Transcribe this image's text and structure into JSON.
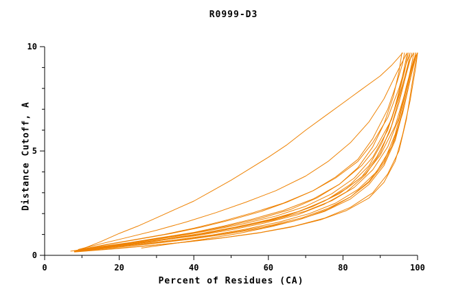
{
  "chart_data": {
    "type": "line",
    "title": "R0999-D3",
    "xlabel": "Percent of Residues (CA)",
    "ylabel": "Distance Cutoff, A",
    "xlim": [
      0,
      100
    ],
    "ylim": [
      0,
      10
    ],
    "x_major_ticks": [
      0,
      20,
      40,
      60,
      80,
      100
    ],
    "x_minor_step": 10,
    "y_major_ticks": [
      0,
      5,
      10
    ],
    "y_minor_step": 1,
    "grid": false,
    "legend_position": "none",
    "line_color": "#ee8100",
    "axis_color": "#000000",
    "curves": [
      [
        [
          10,
          0.3
        ],
        [
          15,
          0.65
        ],
        [
          20,
          1.05
        ],
        [
          25,
          1.4
        ],
        [
          30,
          1.8
        ],
        [
          35,
          2.2
        ],
        [
          40,
          2.6
        ],
        [
          45,
          3.1
        ],
        [
          50,
          3.6
        ],
        [
          55,
          4.15
        ],
        [
          60,
          4.7
        ],
        [
          65,
          5.3
        ],
        [
          70,
          6.0
        ],
        [
          75,
          6.65
        ],
        [
          80,
          7.3
        ],
        [
          85,
          7.95
        ],
        [
          90,
          8.6
        ],
        [
          93,
          9.1
        ],
        [
          95,
          9.5
        ],
        [
          96,
          9.7
        ]
      ],
      [
        [
          9,
          0.28
        ],
        [
          15,
          0.55
        ],
        [
          22,
          0.85
        ],
        [
          30,
          1.2
        ],
        [
          38,
          1.6
        ],
        [
          46,
          2.05
        ],
        [
          54,
          2.55
        ],
        [
          62,
          3.1
        ],
        [
          70,
          3.8
        ],
        [
          76,
          4.5
        ],
        [
          82,
          5.4
        ],
        [
          87,
          6.4
        ],
        [
          91,
          7.5
        ],
        [
          94,
          8.6
        ],
        [
          96,
          9.3
        ],
        [
          97,
          9.65
        ]
      ],
      [
        [
          9,
          0.25
        ],
        [
          16,
          0.5
        ],
        [
          24,
          0.75
        ],
        [
          32,
          1.0
        ],
        [
          40,
          1.3
        ],
        [
          48,
          1.65
        ],
        [
          56,
          2.05
        ],
        [
          64,
          2.5
        ],
        [
          72,
          3.1
        ],
        [
          78,
          3.7
        ],
        [
          84,
          4.5
        ],
        [
          88,
          5.4
        ],
        [
          92,
          6.6
        ],
        [
          95,
          8.0
        ],
        [
          97,
          9.2
        ],
        [
          98,
          9.7
        ]
      ],
      [
        [
          8,
          0.22
        ],
        [
          15,
          0.42
        ],
        [
          23,
          0.62
        ],
        [
          31,
          0.85
        ],
        [
          40,
          1.1
        ],
        [
          48,
          1.4
        ],
        [
          56,
          1.75
        ],
        [
          64,
          2.15
        ],
        [
          72,
          2.7
        ],
        [
          79,
          3.4
        ],
        [
          85,
          4.3
        ],
        [
          89,
          5.2
        ],
        [
          93,
          6.5
        ],
        [
          96,
          8.2
        ],
        [
          98,
          9.4
        ],
        [
          99,
          9.7
        ]
      ],
      [
        [
          8,
          0.2
        ],
        [
          15,
          0.38
        ],
        [
          24,
          0.58
        ],
        [
          33,
          0.8
        ],
        [
          42,
          1.05
        ],
        [
          51,
          1.35
        ],
        [
          60,
          1.7
        ],
        [
          68,
          2.1
        ],
        [
          75,
          2.6
        ],
        [
          81,
          3.2
        ],
        [
          86,
          3.9
        ],
        [
          90,
          4.8
        ],
        [
          94,
          6.2
        ],
        [
          97,
          8.0
        ],
        [
          99,
          9.3
        ],
        [
          100,
          9.7
        ]
      ],
      [
        [
          9,
          0.22
        ],
        [
          17,
          0.4
        ],
        [
          26,
          0.6
        ],
        [
          35,
          0.82
        ],
        [
          44,
          1.08
        ],
        [
          53,
          1.38
        ],
        [
          62,
          1.72
        ],
        [
          70,
          2.12
        ],
        [
          77,
          2.62
        ],
        [
          83,
          3.25
        ],
        [
          88,
          4.1
        ],
        [
          92,
          5.2
        ],
        [
          95,
          6.6
        ],
        [
          97,
          8.1
        ],
        [
          99,
          9.4
        ],
        [
          100,
          9.7
        ]
      ],
      [
        [
          8,
          0.18
        ],
        [
          16,
          0.33
        ],
        [
          25,
          0.5
        ],
        [
          34,
          0.68
        ],
        [
          43,
          0.9
        ],
        [
          52,
          1.15
        ],
        [
          61,
          1.45
        ],
        [
          69,
          1.8
        ],
        [
          76,
          2.25
        ],
        [
          82,
          2.8
        ],
        [
          87,
          3.5
        ],
        [
          91,
          4.4
        ],
        [
          94,
          5.6
        ],
        [
          96,
          7.0
        ],
        [
          98,
          8.6
        ],
        [
          99.5,
          9.7
        ]
      ],
      [
        [
          8,
          0.2
        ],
        [
          16,
          0.36
        ],
        [
          25,
          0.54
        ],
        [
          35,
          0.74
        ],
        [
          45,
          0.98
        ],
        [
          54,
          1.26
        ],
        [
          63,
          1.6
        ],
        [
          71,
          2.0
        ],
        [
          78,
          2.5
        ],
        [
          84,
          3.15
        ],
        [
          89,
          4.0
        ],
        [
          93,
          5.2
        ],
        [
          96,
          6.8
        ],
        [
          98,
          8.4
        ],
        [
          99.5,
          9.5
        ],
        [
          100,
          9.7
        ]
      ],
      [
        [
          8,
          0.17
        ],
        [
          17,
          0.3
        ],
        [
          27,
          0.45
        ],
        [
          37,
          0.62
        ],
        [
          47,
          0.82
        ],
        [
          57,
          1.06
        ],
        [
          66,
          1.35
        ],
        [
          74,
          1.7
        ],
        [
          81,
          2.15
        ],
        [
          87,
          2.75
        ],
        [
          91,
          3.5
        ],
        [
          94,
          4.5
        ],
        [
          96,
          5.8
        ],
        [
          98,
          7.4
        ],
        [
          99.5,
          9.0
        ],
        [
          100,
          9.7
        ]
      ],
      [
        [
          9,
          0.2
        ],
        [
          18,
          0.36
        ],
        [
          28,
          0.54
        ],
        [
          38,
          0.75
        ],
        [
          48,
          1.0
        ],
        [
          58,
          1.3
        ],
        [
          67,
          1.65
        ],
        [
          75,
          2.1
        ],
        [
          82,
          2.7
        ],
        [
          87,
          3.4
        ],
        [
          91,
          4.3
        ],
        [
          94,
          5.5
        ],
        [
          96.5,
          7.2
        ],
        [
          98.5,
          8.8
        ],
        [
          99.5,
          9.7
        ]
      ],
      [
        [
          8,
          0.22
        ],
        [
          15,
          0.4
        ],
        [
          23,
          0.6
        ],
        [
          31,
          0.82
        ],
        [
          40,
          1.08
        ],
        [
          49,
          1.4
        ],
        [
          58,
          1.78
        ],
        [
          66,
          2.2
        ],
        [
          73,
          2.75
        ],
        [
          79,
          3.4
        ],
        [
          84,
          4.2
        ],
        [
          88,
          5.2
        ],
        [
          91,
          6.3
        ],
        [
          93.5,
          7.6
        ],
        [
          95,
          8.8
        ],
        [
          95.8,
          9.7
        ]
      ],
      [
        [
          8,
          0.2
        ],
        [
          16,
          0.38
        ],
        [
          25,
          0.58
        ],
        [
          34,
          0.8
        ],
        [
          43,
          1.05
        ],
        [
          52,
          1.35
        ],
        [
          61,
          1.7
        ],
        [
          69,
          2.15
        ],
        [
          76,
          2.7
        ],
        [
          82,
          3.4
        ],
        [
          87,
          4.3
        ],
        [
          90.5,
          5.4
        ],
        [
          93.5,
          6.8
        ],
        [
          95.5,
          8.2
        ],
        [
          96.8,
          9.3
        ],
        [
          97.2,
          9.7
        ]
      ],
      [
        [
          12,
          0.25
        ],
        [
          20,
          0.45
        ],
        [
          29,
          0.66
        ],
        [
          38,
          0.9
        ],
        [
          47,
          1.18
        ],
        [
          56,
          1.5
        ],
        [
          65,
          1.9
        ],
        [
          72,
          2.35
        ],
        [
          79,
          2.95
        ],
        [
          85,
          3.75
        ],
        [
          89,
          4.7
        ],
        [
          92.5,
          5.9
        ],
        [
          95,
          7.3
        ],
        [
          97,
          8.7
        ],
        [
          98.5,
          9.7
        ]
      ],
      [
        [
          8,
          0.16
        ],
        [
          18,
          0.3
        ],
        [
          28,
          0.46
        ],
        [
          38,
          0.64
        ],
        [
          48,
          0.85
        ],
        [
          58,
          1.1
        ],
        [
          67,
          1.4
        ],
        [
          75,
          1.78
        ],
        [
          82,
          2.3
        ],
        [
          88,
          3.0
        ],
        [
          92,
          3.9
        ],
        [
          95,
          5.0
        ],
        [
          97,
          6.5
        ],
        [
          98.5,
          8.2
        ],
        [
          99.5,
          9.3
        ],
        [
          100,
          9.7
        ]
      ],
      [
        [
          9,
          0.24
        ],
        [
          17,
          0.44
        ],
        [
          26,
          0.66
        ],
        [
          35,
          0.9
        ],
        [
          44,
          1.18
        ],
        [
          53,
          1.5
        ],
        [
          62,
          1.88
        ],
        [
          70,
          2.35
        ],
        [
          77,
          2.95
        ],
        [
          83,
          3.7
        ],
        [
          88,
          4.7
        ],
        [
          92,
          6.0
        ],
        [
          94.5,
          7.4
        ],
        [
          96.5,
          8.8
        ],
        [
          97.5,
          9.7
        ]
      ],
      [
        [
          10,
          0.3
        ],
        [
          18,
          0.55
        ],
        [
          26,
          0.8
        ],
        [
          34,
          1.05
        ],
        [
          42,
          1.35
        ],
        [
          50,
          1.7
        ],
        [
          58,
          2.1
        ],
        [
          65,
          2.55
        ],
        [
          72,
          3.1
        ],
        [
          78,
          3.75
        ],
        [
          84,
          4.6
        ],
        [
          88,
          5.6
        ],
        [
          92,
          7.0
        ],
        [
          94.5,
          8.3
        ],
        [
          96,
          9.2
        ],
        [
          96.5,
          9.7
        ]
      ],
      [
        [
          7,
          0.2
        ],
        [
          14,
          0.35
        ],
        [
          22,
          0.52
        ],
        [
          31,
          0.72
        ],
        [
          41,
          0.95
        ],
        [
          50,
          1.22
        ],
        [
          59,
          1.55
        ],
        [
          68,
          1.95
        ],
        [
          75,
          2.45
        ],
        [
          81,
          3.05
        ],
        [
          86,
          3.85
        ],
        [
          90,
          4.9
        ],
        [
          93,
          6.2
        ],
        [
          95.5,
          7.8
        ],
        [
          97.5,
          9.2
        ],
        [
          98,
          9.7
        ]
      ],
      [
        [
          26,
          0.35
        ],
        [
          34,
          0.55
        ],
        [
          43,
          0.78
        ],
        [
          52,
          1.05
        ],
        [
          61,
          1.38
        ],
        [
          69,
          1.75
        ],
        [
          76,
          2.2
        ],
        [
          82,
          2.8
        ],
        [
          87,
          3.55
        ],
        [
          91,
          4.5
        ],
        [
          94,
          5.8
        ],
        [
          96,
          7.2
        ],
        [
          98,
          8.8
        ],
        [
          99,
          9.7
        ]
      ]
    ]
  }
}
